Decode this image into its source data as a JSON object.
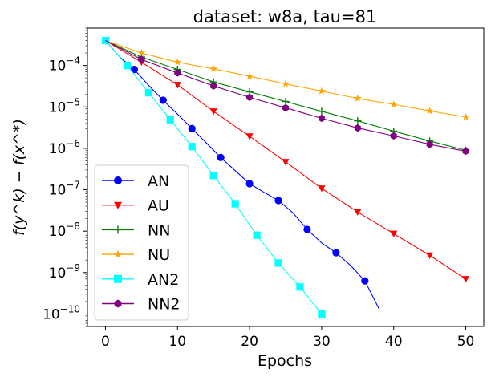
{
  "chart_data": {
    "type": "line",
    "title": "dataset: w8a, tau=81",
    "xlabel": "Epochs",
    "ylabel": "f(y^k) − f(x^*)",
    "yscale": "log",
    "xlim": [
      -2.5,
      52.5
    ],
    "ylim": [
      5e-11,
      0.0008
    ],
    "xticks": [
      0,
      10,
      20,
      30,
      40,
      50
    ],
    "xtick_labels": [
      "0",
      "10",
      "20",
      "30",
      "40",
      "50"
    ],
    "yticks": [
      1e-10,
      1e-09,
      1e-08,
      1e-07,
      1e-06,
      1e-05,
      0.0001
    ],
    "ytick_labels": [
      {
        "base": "10",
        "exp": "−10"
      },
      {
        "base": "10",
        "exp": "−9"
      },
      {
        "base": "10",
        "exp": "−8"
      },
      {
        "base": "10",
        "exp": "−7"
      },
      {
        "base": "10",
        "exp": "−6"
      },
      {
        "base": "10",
        "exp": "−5"
      },
      {
        "base": "10",
        "exp": "−4"
      }
    ],
    "legend_position": "lower-left",
    "series": [
      {
        "name": "AN",
        "color": "#0000ff",
        "marker": "circle",
        "x": [
          0,
          2,
          4,
          6,
          8,
          10,
          12,
          14,
          16,
          18,
          20,
          22,
          24,
          26,
          28,
          30,
          32,
          34,
          36,
          38
        ],
        "y": [
          0.0004,
          0.00016,
          8e-05,
          3.3e-05,
          1.45e-05,
          6.7e-06,
          3e-06,
          1.35e-06,
          6e-07,
          2.9e-07,
          1.4e-07,
          8.7e-08,
          5.5e-08,
          2.8e-08,
          1.1e-08,
          5.2e-09,
          3e-09,
          1.5e-09,
          6.3e-10,
          1.3e-10
        ],
        "markers_x": [
          0,
          4,
          8,
          12,
          16,
          20,
          24,
          28,
          32,
          36
        ],
        "markers_y": [
          0.0004,
          8e-05,
          1.45e-05,
          3e-06,
          6e-07,
          1.4e-07,
          5.5e-08,
          1.1e-08,
          3e-09,
          6.3e-10
        ]
      },
      {
        "name": "AU",
        "color": "#ff0000",
        "marker": "triangle-down",
        "x": [
          0,
          5,
          10,
          15,
          20,
          25,
          30,
          35,
          40,
          45,
          50
        ],
        "y": [
          0.0004,
          0.00012,
          3.4e-05,
          7.8e-06,
          1.95e-06,
          4.7e-07,
          1.08e-07,
          2.9e-08,
          8.7e-09,
          2.6e-09,
          7e-10
        ],
        "markers_x": [
          5,
          10,
          15,
          20,
          25,
          30,
          35,
          40,
          45,
          50
        ],
        "markers_y": [
          0.00012,
          3.4e-05,
          7.8e-06,
          1.95e-06,
          4.7e-07,
          1.08e-07,
          2.9e-08,
          8.7e-09,
          2.6e-09,
          7e-10
        ]
      },
      {
        "name": "NN",
        "color": "#008000",
        "marker": "plus",
        "x": [
          0,
          5,
          10,
          15,
          20,
          25,
          30,
          35,
          40,
          45,
          50
        ],
        "y": [
          0.0004,
          0.00016,
          8e-05,
          4e-05,
          2.3e-05,
          1.35e-05,
          7.8e-06,
          4.6e-06,
          2.6e-06,
          1.5e-06,
          9e-07
        ],
        "markers_x": [
          5,
          10,
          15,
          20,
          25,
          30,
          35,
          40,
          45,
          50
        ],
        "markers_y": [
          0.00016,
          8e-05,
          4e-05,
          2.3e-05,
          1.35e-05,
          7.8e-06,
          4.6e-06,
          2.6e-06,
          1.5e-06,
          9e-07
        ]
      },
      {
        "name": "NU",
        "color": "#ffa500",
        "marker": "star",
        "x": [
          0,
          5,
          10,
          15,
          20,
          25,
          30,
          35,
          40,
          45,
          50
        ],
        "y": [
          0.0004,
          0.0002,
          0.00012,
          8.3e-05,
          5.5e-05,
          3.6e-05,
          2.4e-05,
          1.6e-05,
          1.15e-05,
          8e-06,
          5.7e-06
        ],
        "markers_x": [
          5,
          10,
          15,
          20,
          25,
          30,
          35,
          40,
          45,
          50
        ],
        "markers_y": [
          0.0002,
          0.00012,
          8.3e-05,
          5.5e-05,
          3.6e-05,
          2.4e-05,
          1.6e-05,
          1.15e-05,
          8e-06,
          5.7e-06
        ]
      },
      {
        "name": "AN2",
        "color": "#00ffff",
        "marker": "square",
        "x": [
          0,
          3,
          6,
          9,
          12,
          15,
          18,
          21,
          24,
          27,
          30
        ],
        "y": [
          0.0004,
          0.0001,
          2.2e-05,
          4.9e-06,
          1.1e-06,
          2.2e-07,
          4.6e-08,
          8e-09,
          1.7e-09,
          4.5e-10,
          1e-10
        ],
        "markers_x": [
          0,
          3,
          6,
          9,
          12,
          15,
          18,
          21,
          24,
          27,
          30
        ],
        "markers_y": [
          0.0004,
          0.0001,
          2.2e-05,
          4.9e-06,
          1.1e-06,
          2.2e-07,
          4.6e-08,
          8e-09,
          1.7e-09,
          4.5e-10,
          1e-10
        ]
      },
      {
        "name": "NN2",
        "color": "#800080",
        "marker": "hexagon",
        "x": [
          0,
          5,
          10,
          15,
          20,
          25,
          30,
          35,
          40,
          45,
          50
        ],
        "y": [
          0.0004,
          0.00014,
          6.6e-05,
          3.2e-05,
          1.7e-05,
          9.5e-06,
          5.3e-06,
          3.1e-06,
          2e-06,
          1.25e-06,
          8.5e-07
        ],
        "markers_x": [
          5,
          10,
          15,
          20,
          25,
          30,
          35,
          40,
          45,
          50
        ],
        "markers_y": [
          0.00014,
          6.6e-05,
          3.2e-05,
          1.7e-05,
          9.5e-06,
          5.3e-06,
          3.1e-06,
          2e-06,
          1.25e-06,
          8.5e-07
        ]
      }
    ]
  }
}
